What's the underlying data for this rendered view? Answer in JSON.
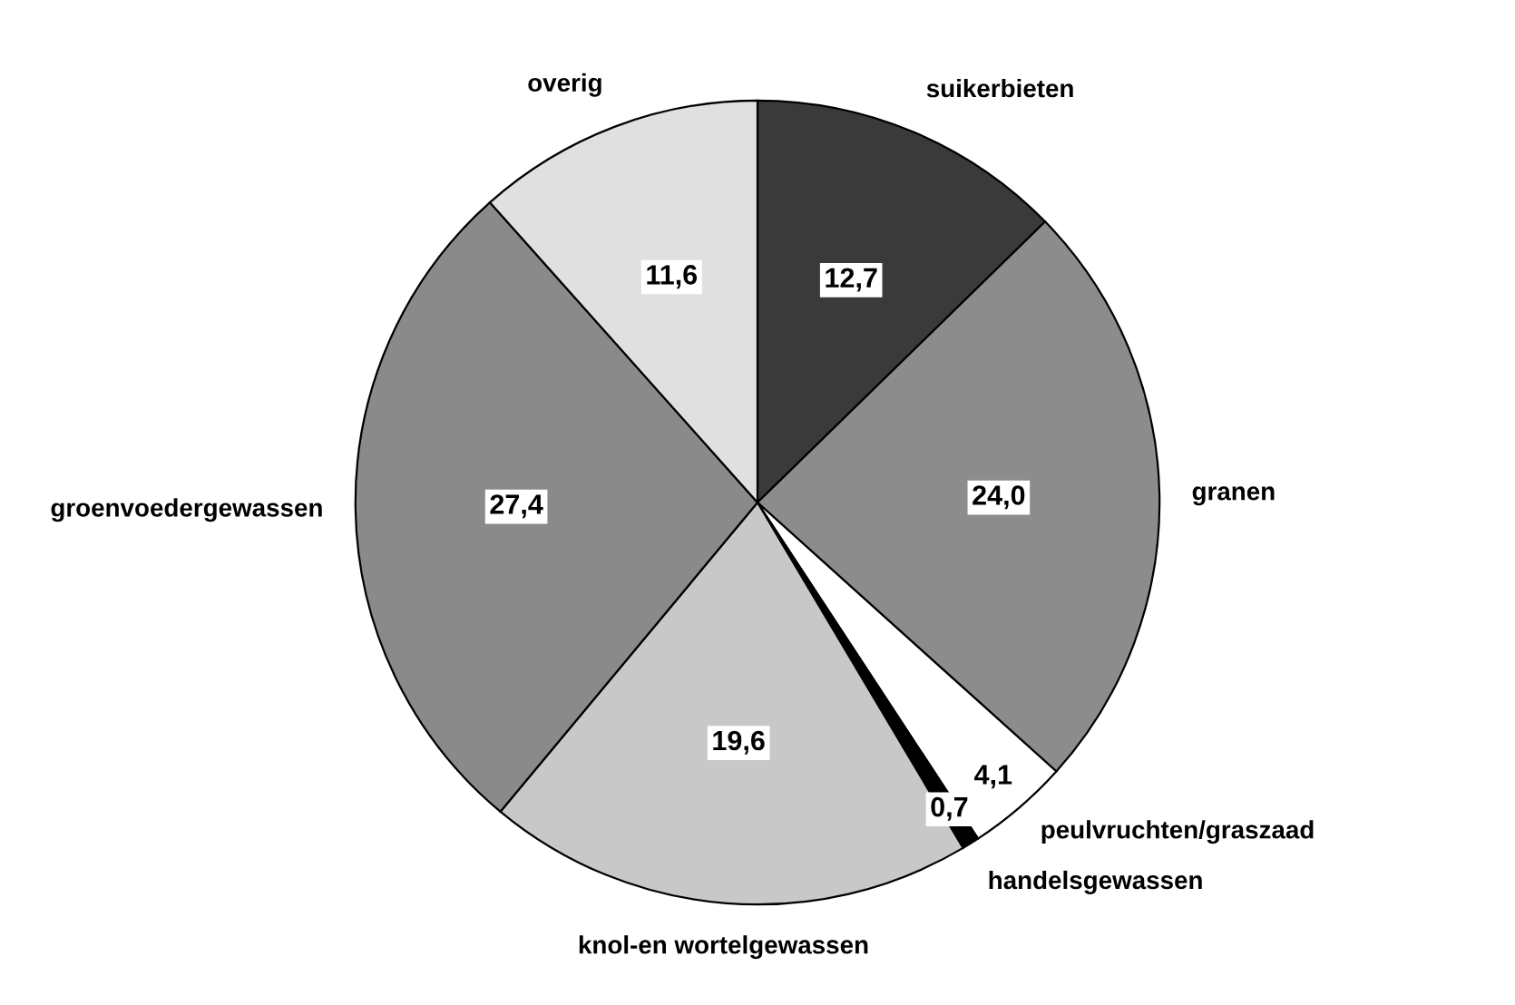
{
  "chart_data": {
    "type": "pie",
    "categories": [
      "suikerbieten",
      "granen",
      "peulvruchten/graszaad",
      "handelsgewassen",
      "knol-en wortelgewassen",
      "groenvoedergewassen",
      "overig"
    ],
    "values": [
      12.7,
      24.0,
      4.1,
      0.7,
      19.6,
      27.4,
      11.6
    ],
    "value_labels": [
      "12,7",
      "24,0",
      "4,1",
      "0,7",
      "19,6",
      "27,4",
      "11,6"
    ],
    "colors": [
      "#3a3a3a",
      "#8c8c8c",
      "#ffffff",
      "#000000",
      "#c8c8c8",
      "#8a8a8a",
      "#e0e0e0"
    ],
    "legend": false
  }
}
